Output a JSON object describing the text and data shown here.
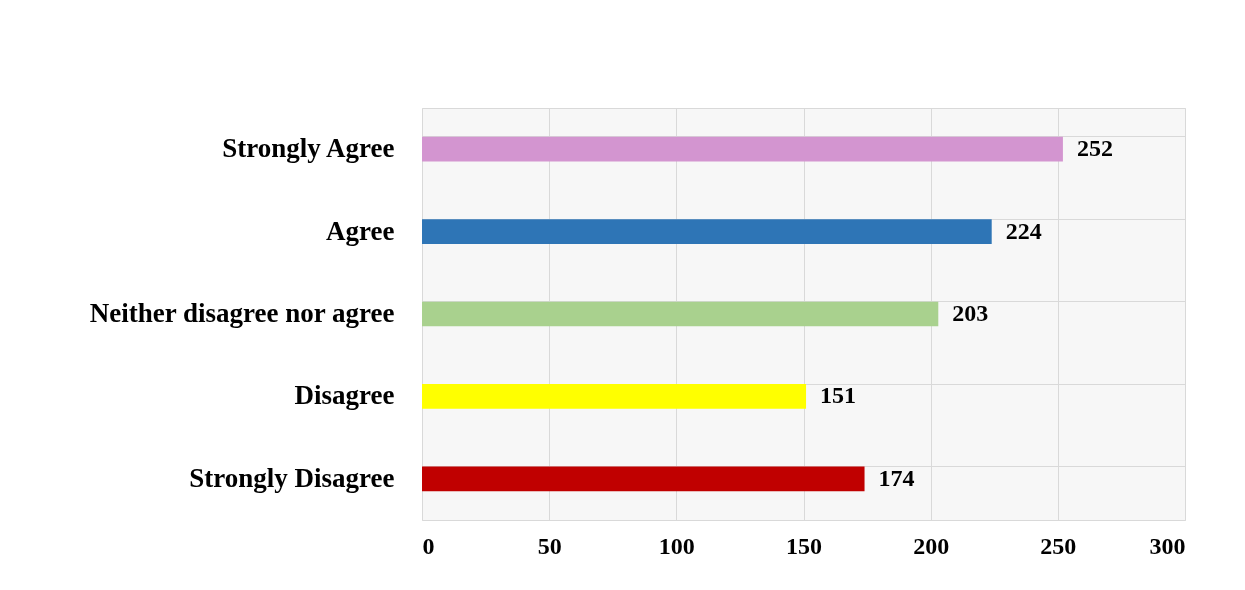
{
  "chart_data": {
    "type": "bar",
    "orientation": "horizontal",
    "categories": [
      "Strongly Agree",
      "Agree",
      "Neither disagree nor agree",
      "Disagree",
      "Strongly Disagree"
    ],
    "values": [
      252,
      224,
      203,
      151,
      174
    ],
    "colors": [
      "#d395d0",
      "#2e75b6",
      "#a9d18e",
      "#ffff00",
      "#c00000"
    ],
    "xlim": [
      0,
      300
    ],
    "xticks": [
      0,
      50,
      100,
      150,
      200,
      250,
      300
    ],
    "grid": true,
    "data_labels": true
  }
}
